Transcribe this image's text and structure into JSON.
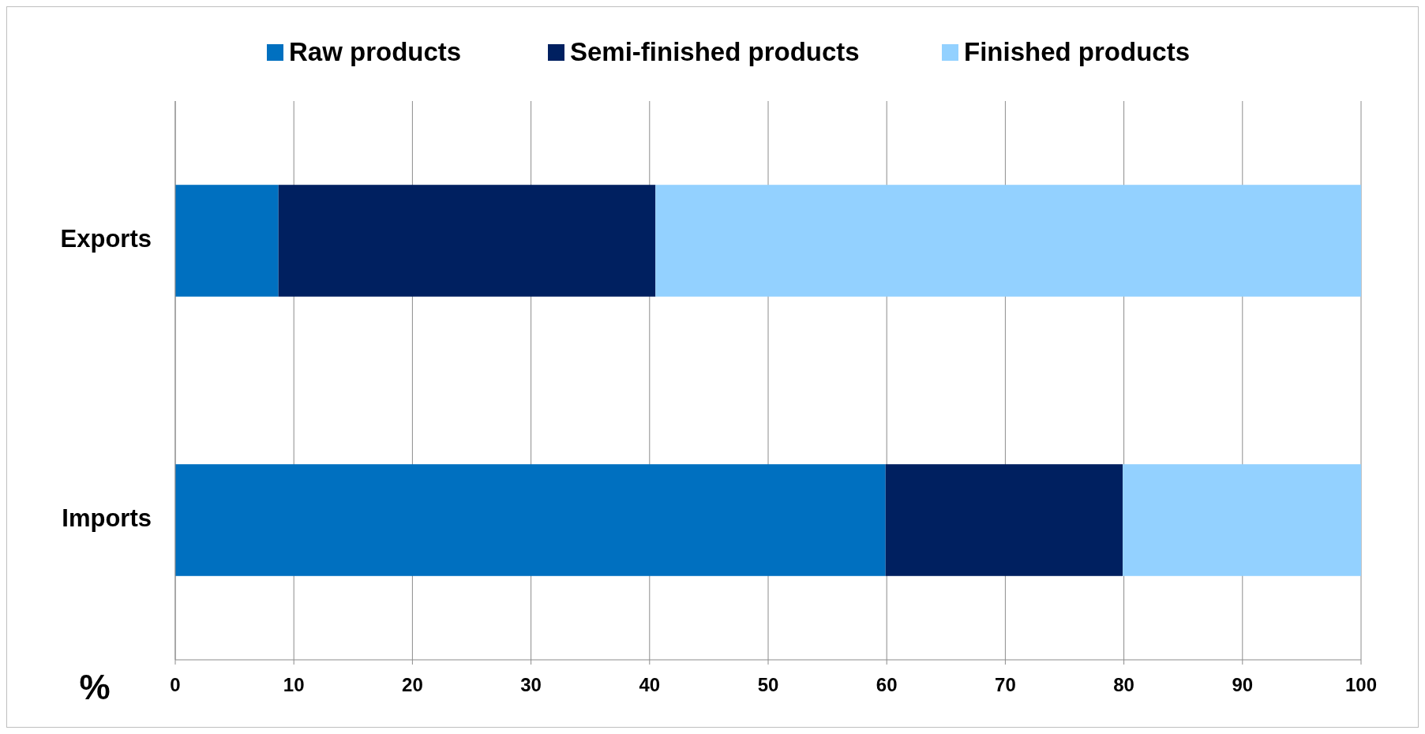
{
  "chart_data": {
    "type": "bar",
    "orientation": "horizontal",
    "stacked": true,
    "xlabel": "%",
    "categories": [
      "Exports",
      "Imports"
    ],
    "series": [
      {
        "name": "Raw products",
        "color": "#0070c0",
        "values": [
          8.7,
          59.9
        ]
      },
      {
        "name": "Semi-finished products",
        "color": "#002060",
        "values": [
          31.8,
          20.0
        ]
      },
      {
        "name": "Finished products",
        "color": "#93d1ff",
        "values": [
          59.5,
          20.1
        ]
      }
    ],
    "xlim": [
      0,
      100
    ],
    "xticks": [
      0,
      10,
      20,
      30,
      40,
      50,
      60,
      70,
      80,
      90,
      100
    ],
    "grid": "x",
    "legend": "top"
  }
}
